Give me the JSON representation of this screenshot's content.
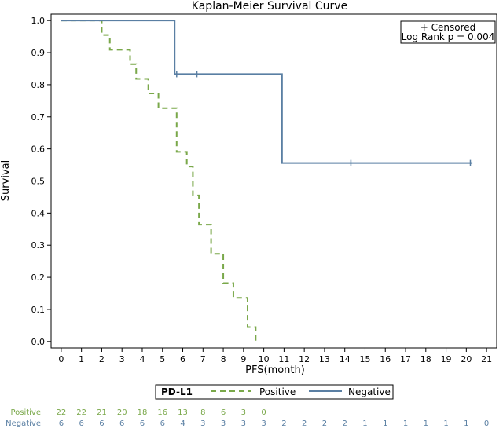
{
  "chart_data": {
    "type": "line",
    "subtype": "kaplan-meier",
    "title": "Kaplan-Meier Survival Curve",
    "xlabel": "PFS(month)",
    "ylabel": "Survival",
    "xlim": [
      -0.5,
      21.5
    ],
    "ylim": [
      -0.02,
      1.02
    ],
    "x_ticks": [
      0,
      1,
      2,
      3,
      4,
      5,
      6,
      7,
      8,
      9,
      10,
      11,
      12,
      13,
      14,
      15,
      16,
      17,
      18,
      19,
      20,
      21
    ],
    "y_ticks": [
      0.0,
      0.1,
      0.2,
      0.3,
      0.4,
      0.5,
      0.6,
      0.7,
      0.8,
      0.9,
      1.0
    ],
    "y_tick_labels": [
      "0.0",
      "0.1",
      "0.2",
      "0.3",
      "0.4",
      "0.5",
      "0.6",
      "0.7",
      "0.8",
      "0.9",
      "1.0"
    ],
    "grid": false,
    "annotation": {
      "censored_label": "+ Censored",
      "logrank_label": "Log Rank p =  0.004"
    },
    "legend": {
      "title": "PD-L1",
      "position": "bottom",
      "entries": [
        "Positive",
        "Negative"
      ]
    },
    "series": [
      {
        "name": "Positive",
        "color": "#7aa84a",
        "dash": "dashed",
        "steps": [
          [
            0,
            1.0
          ],
          [
            2.0,
            0.955
          ],
          [
            2.4,
            0.909
          ],
          [
            3.4,
            0.864
          ],
          [
            3.7,
            0.818
          ],
          [
            4.3,
            0.773
          ],
          [
            4.8,
            0.727
          ],
          [
            5.7,
            0.591
          ],
          [
            6.2,
            0.545
          ],
          [
            6.5,
            0.455
          ],
          [
            6.8,
            0.364
          ],
          [
            7.4,
            0.273
          ],
          [
            8.0,
            0.182
          ],
          [
            8.5,
            0.136
          ],
          [
            9.2,
            0.045
          ],
          [
            9.6,
            0.0
          ]
        ],
        "censored": []
      },
      {
        "name": "Negative",
        "color": "#5a7fa3",
        "dash": "solid",
        "steps": [
          [
            0,
            1.0
          ],
          [
            5.6,
            0.833
          ],
          [
            10.9,
            0.556
          ],
          [
            20.3,
            0.556
          ]
        ],
        "censored": [
          [
            5.7,
            0.833
          ],
          [
            6.7,
            0.833
          ],
          [
            14.3,
            0.556
          ],
          [
            20.2,
            0.556
          ]
        ]
      }
    ],
    "risk_table": {
      "Positive": [
        "22",
        "22",
        "21",
        "20",
        "18",
        "16",
        "13",
        "8",
        "6",
        "3",
        "0"
      ],
      "Negative": [
        "6",
        "6",
        "6",
        "6",
        "6",
        "6",
        "4",
        "3",
        "3",
        "3",
        "3",
        "2",
        "2",
        "2",
        "2",
        "1",
        "1",
        "1",
        "1",
        "1",
        "1",
        "0"
      ]
    }
  }
}
